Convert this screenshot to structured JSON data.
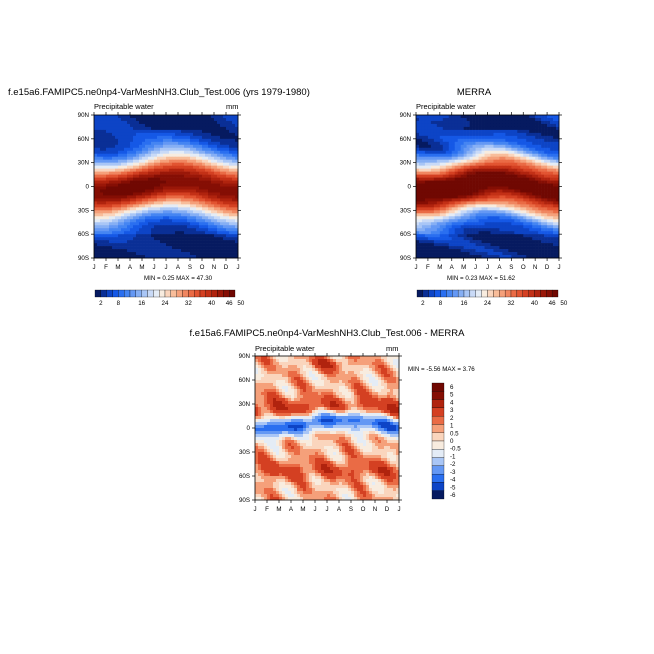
{
  "chart_data": [
    {
      "type": "heatmap",
      "title": "f.e15a6.FAMIPC5.ne0np4-VarMeshNH3.Club_Test.006 (yrs 1979-1980)",
      "subtitle_left": "Precipitable water",
      "units": "mm",
      "y_ticks": [
        "90N",
        "60N",
        "30N",
        "0",
        "30S",
        "60S",
        "90S"
      ],
      "x_ticks": [
        "J",
        "F",
        "M",
        "A",
        "M",
        "J",
        "J",
        "A",
        "S",
        "O",
        "N",
        "D",
        "J"
      ],
      "stats": "MIN =   0.25 MAX =  47.30",
      "levels": [
        2,
        4,
        6,
        8,
        10,
        12,
        14,
        16,
        18,
        20,
        22,
        24,
        26,
        28,
        30,
        32,
        34,
        36,
        38,
        40,
        42,
        44,
        46,
        48,
        50
      ],
      "colorbar_labels": [
        "2",
        "8",
        "16",
        "24",
        "32",
        "40",
        "46",
        "50"
      ]
    },
    {
      "type": "heatmap",
      "title": "MERRA",
      "subtitle_left": "Precipitable water",
      "units": "mm",
      "y_ticks": [
        "90N",
        "60N",
        "30N",
        "0",
        "30S",
        "60S",
        "90S"
      ],
      "x_ticks": [
        "J",
        "F",
        "M",
        "A",
        "M",
        "J",
        "J",
        "A",
        "S",
        "O",
        "N",
        "D",
        "J"
      ],
      "stats": "MIN =   0.23 MAX =  51.62",
      "levels": [
        2,
        4,
        6,
        8,
        10,
        12,
        14,
        16,
        18,
        20,
        22,
        24,
        26,
        28,
        30,
        32,
        34,
        36,
        38,
        40,
        42,
        44,
        46,
        48,
        50
      ],
      "colorbar_labels": [
        "2",
        "8",
        "16",
        "24",
        "32",
        "40",
        "46",
        "50"
      ]
    },
    {
      "type": "heatmap",
      "title": "f.e15a6.FAMIPC5.ne0np4-VarMeshNH3.Club_Test.006 - MERRA",
      "subtitle_left": "Precipitable water",
      "units": "mm",
      "y_ticks": [
        "90N",
        "60N",
        "30N",
        "0",
        "30S",
        "60S",
        "90S"
      ],
      "x_ticks": [
        "J",
        "F",
        "M",
        "A",
        "M",
        "J",
        "J",
        "A",
        "S",
        "O",
        "N",
        "D",
        "J"
      ],
      "stats": "MIN =  -5.56 MAX =   3.76",
      "levels": [
        -6,
        -5,
        -4,
        -3,
        -2,
        -1,
        -0.5,
        0,
        0.5,
        1,
        2,
        3,
        4,
        5,
        6
      ],
      "colorbar_labels": [
        "6",
        "5",
        "4",
        "3",
        "2",
        "1",
        "0.5",
        "0",
        "-0.5",
        "-1",
        "-2",
        "-3",
        "-4",
        "-5",
        "-6"
      ]
    }
  ],
  "colors": {
    "full_scale": [
      "#061a60",
      "#0a2f96",
      "#0d44c6",
      "#1558e6",
      "#2a6ff0",
      "#4585f2",
      "#6498f4",
      "#86aff4",
      "#a9c6f6",
      "#c9daf7",
      "#e4ecf6",
      "#f8ecdf",
      "#fad5bd",
      "#f8bd9a",
      "#f5a07a",
      "#f08660",
      "#ea6b45",
      "#e25431",
      "#d44022",
      "#c33016",
      "#b0230e",
      "#9a1708",
      "#850e04",
      "#700802"
    ],
    "diff_scale": [
      "#061a60",
      "#0d44c6",
      "#2a6ff0",
      "#6498f4",
      "#a9c6f6",
      "#e4ecf6",
      "#f8ecdf",
      "#fad5bd",
      "#f5a07a",
      "#ea6b45",
      "#d44022",
      "#b0230e",
      "#850e04",
      "#700802"
    ]
  }
}
